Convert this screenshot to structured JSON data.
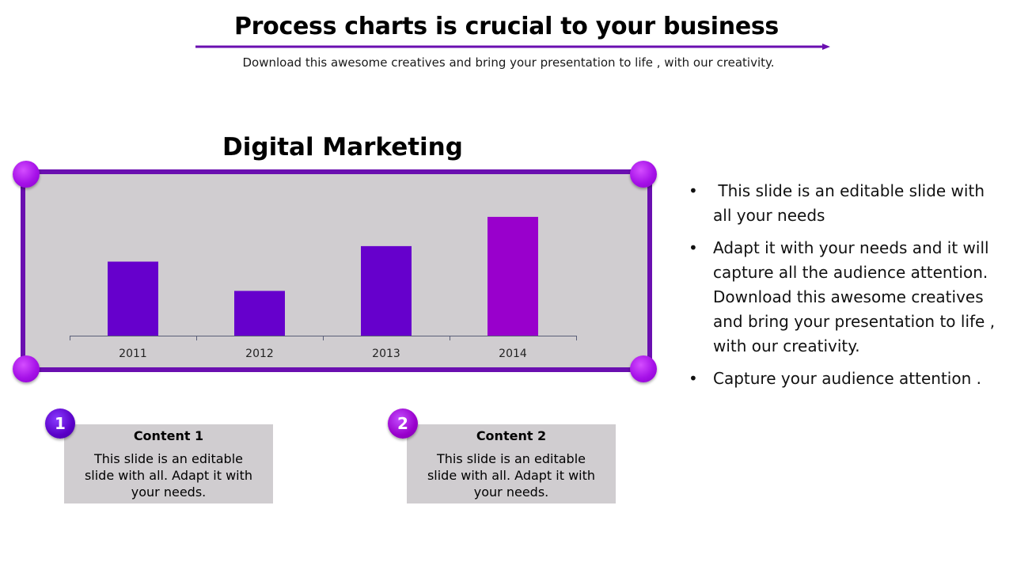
{
  "header": {
    "title": "Process charts is crucial to your business",
    "subtitle": "Download this awesome creatives and bring your presentation to life , with our creativity."
  },
  "colors": {
    "accent": "#6a0fb0",
    "bar_primary": "#6600cc",
    "bar_highlight": "#9900cc",
    "frame_fill": "#d0cdd0"
  },
  "chart_data": {
    "type": "bar",
    "title": "Digital Marketing",
    "categories": [
      "2011",
      "2012",
      "2013",
      "2014"
    ],
    "values": [
      4.3,
      2.6,
      5.2,
      6.9
    ],
    "bar_colors": [
      "#6600cc",
      "#6600cc",
      "#6600cc",
      "#9900cc"
    ],
    "xlabel": "",
    "ylabel": "",
    "ylim": [
      0,
      8
    ],
    "grid": false,
    "legend": false
  },
  "bullets": [
    " This slide is an editable slide with all your needs",
    "Adapt it with your needs and it will capture all the audience attention. Download this awesome creatives and bring your presentation to life , with our creativity.",
    "Capture your audience attention ."
  ],
  "bullet_symbol": "•",
  "contents": [
    {
      "number": "1",
      "title": "Content 1",
      "body": "This slide is an editable slide with all. Adapt it with your needs."
    },
    {
      "number": "2",
      "title": "Content 2",
      "body": "This slide is an editable slide with all. Adapt it with your needs."
    }
  ]
}
